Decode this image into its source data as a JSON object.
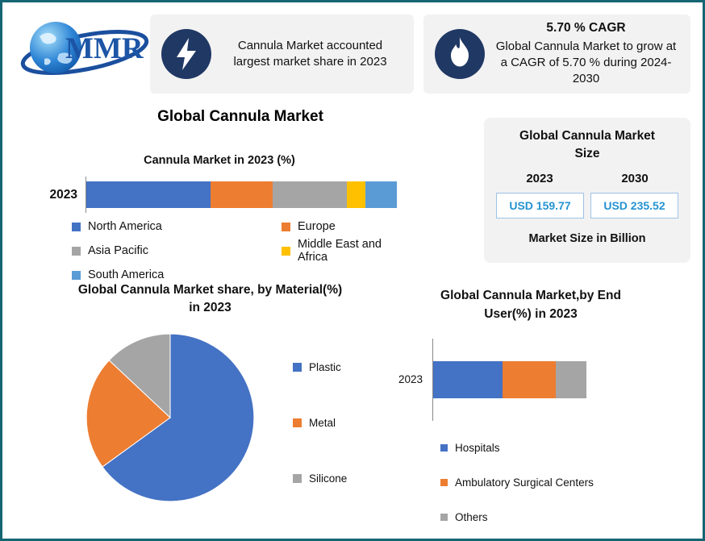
{
  "brand": {
    "logo_text": "MMR"
  },
  "header": {
    "share_card": {
      "icon": "lightning-icon",
      "text": "Cannula Market accounted largest market share in 2023"
    },
    "cagr_card": {
      "icon": "flame-icon",
      "title": "5.70 % CAGR",
      "text": "Global Cannula Market to grow at a CAGR of 5.70 % during 2024-2030"
    }
  },
  "page_title": "Global Cannula Market",
  "market_size_card": {
    "title": "Global Cannula Market Size",
    "years": [
      "2023",
      "2030"
    ],
    "values": [
      "USD 159.77",
      "USD 235.52"
    ],
    "note": "Market Size in Billion",
    "value_color": "#2493d1",
    "box_border_color": "#9dc3e6"
  },
  "theme": {
    "border_color": "#156572",
    "card_bg": "#f2f2f2",
    "icon_circle_bg": "#203864"
  },
  "chart_data": [
    {
      "id": "region-bar",
      "type": "bar",
      "orientation": "horizontal-stacked",
      "title": "Cannula Market in 2023 (%)",
      "categories": [
        "2023"
      ],
      "series": [
        {
          "name": "North America",
          "color": "#4472c4",
          "values": [
            40
          ]
        },
        {
          "name": "Europe",
          "color": "#ed7d31",
          "values": [
            20
          ]
        },
        {
          "name": "Asia Pacific",
          "color": "#a5a5a5",
          "values": [
            24
          ]
        },
        {
          "name": "Middle East and Africa",
          "color": "#ffc000",
          "values": [
            6
          ]
        },
        {
          "name": "South America",
          "color": "#5b9bd5",
          "values": [
            10
          ]
        }
      ],
      "xlim": [
        0,
        100
      ],
      "legend_position": "bottom"
    },
    {
      "id": "material-pie",
      "type": "pie",
      "title": "Global Cannula Market share, by Material(%) in 2023",
      "labels": [
        "Plastic",
        "Metal",
        "Silicone"
      ],
      "values": [
        65,
        22,
        13
      ],
      "colors": [
        "#4472c4",
        "#ed7d31",
        "#a5a5a5"
      ],
      "legend_position": "right"
    },
    {
      "id": "enduser-bar",
      "type": "bar",
      "orientation": "horizontal-stacked",
      "title": "Global Cannula Market,by End User(%) in 2023",
      "categories": [
        "2023"
      ],
      "series": [
        {
          "name": "Hospitals",
          "color": "#4472c4",
          "values": [
            45
          ]
        },
        {
          "name": "Ambulatory Surgical Centers",
          "color": "#ed7d31",
          "values": [
            35
          ]
        },
        {
          "name": "Others",
          "color": "#a5a5a5",
          "values": [
            20
          ]
        }
      ],
      "xlim": [
        0,
        100
      ],
      "legend_position": "bottom"
    }
  ]
}
